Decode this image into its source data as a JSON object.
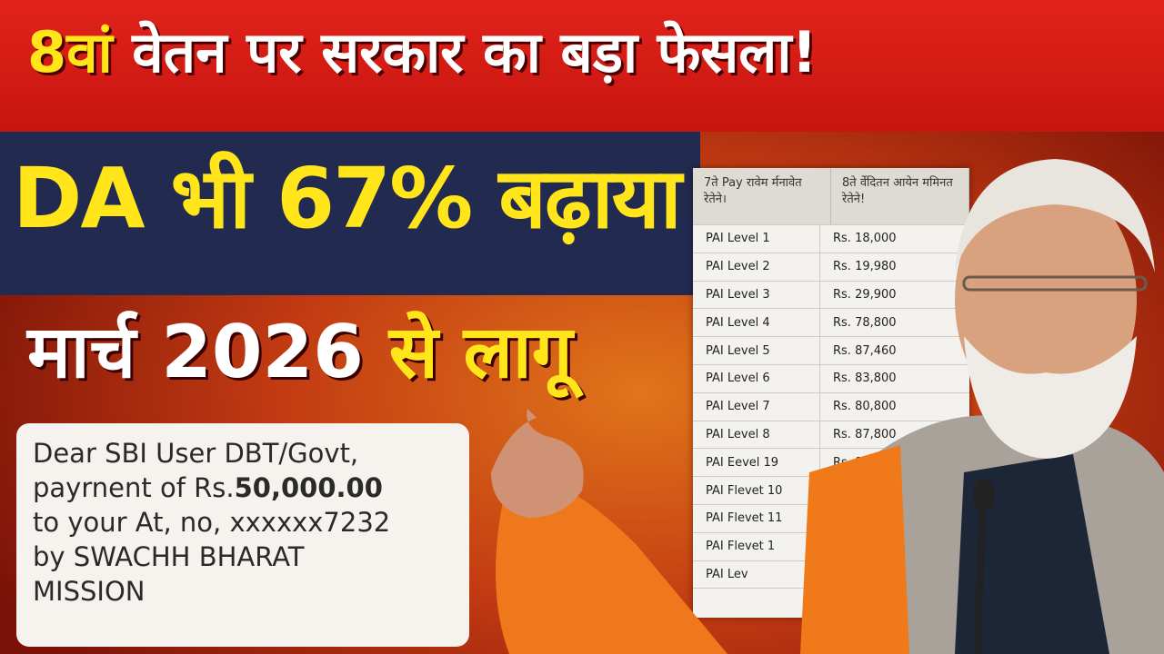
{
  "headline": {
    "highlight": "8वां",
    "rest": " वेतन पर सरकार का बड़ा फेसला!"
  },
  "subheadline": "DA भी 67% बढ़ाया",
  "effective": {
    "prefix": "मार्च 2026 ",
    "suffix": "से लागू"
  },
  "sms": {
    "line1": "Dear SBI User DBT/Govt,",
    "line2_prefix": "payrnent of Rs.",
    "amount": "50,000.00",
    "line3": "to your At, no, xxxxxx7232",
    "line4": "by SWACHH BHARAT",
    "line5": "MISSION"
  },
  "table": {
    "headers": [
      "7ते Pay रावेम र्मनावेत रेतेने।",
      "8ते र्वेदितन आयेन ममिनत रेतेने!"
    ],
    "rows": [
      [
        "PAI Level 1",
        "Rs. 18,000"
      ],
      [
        "PAI Level 2",
        "Rs. 19,980"
      ],
      [
        "PAI Level 3",
        "Rs. 29,900"
      ],
      [
        "PAI Level 4",
        "Rs. 78,800"
      ],
      [
        "PAI Level 5",
        "Rs. 87,460"
      ],
      [
        "PAI Level 6",
        "Rs. 83,800"
      ],
      [
        "PAI Level 7",
        "Rs. 80,800"
      ],
      [
        "PAI Level 8",
        "Rs. 87,800"
      ],
      [
        "PAI Eevel 19",
        "Rs. 81,460"
      ],
      [
        "PAI Flevet 10",
        "Rs."
      ],
      [
        "PAI Flevet 11",
        ""
      ],
      [
        "PAI Flevet 1",
        ""
      ],
      [
        "PAI Lev",
        ""
      ],
      [
        "",
        ""
      ]
    ]
  },
  "colors": {
    "red": "#d41c14",
    "navy": "#232a4f",
    "yellow": "#ffe51a",
    "saffron": "#f07a1a"
  }
}
